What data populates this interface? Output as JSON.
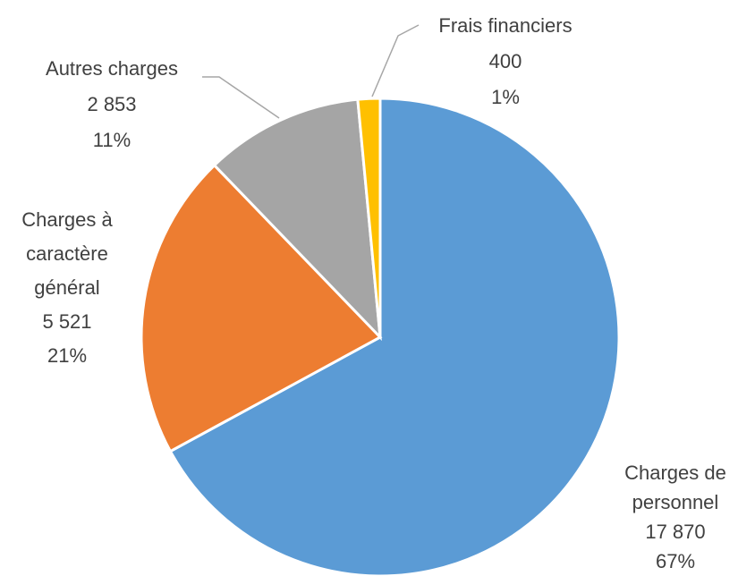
{
  "chart_data": {
    "type": "pie",
    "categories": [
      "Charges de personnel",
      "Charges à caractère général",
      "Autres charges",
      "Frais financiers"
    ],
    "values": [
      17870,
      5521,
      2853,
      400
    ],
    "value_labels": [
      "17 870",
      "5 521",
      "2 853",
      "400"
    ],
    "percent_labels": [
      "67%",
      "21%",
      "11%",
      "1%"
    ],
    "colors": [
      "#5b9bd5",
      "#ed7d31",
      "#a5a5a5",
      "#ffc000"
    ]
  }
}
